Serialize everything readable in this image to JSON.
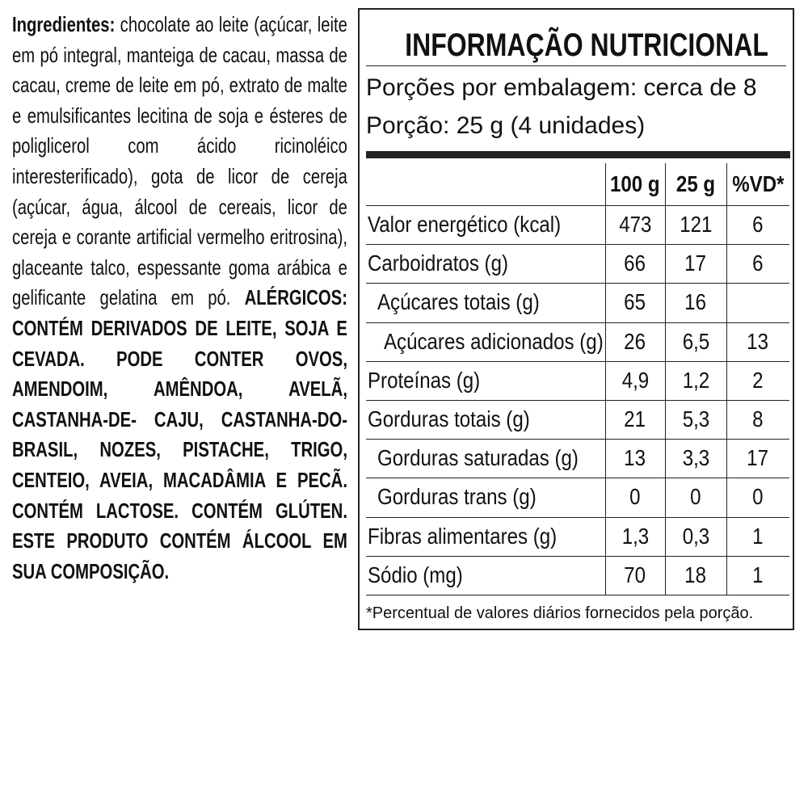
{
  "ingredients": {
    "label": "Ingredientes:",
    "text": "chocolate ao leite (açúcar, leite em pó integral, manteiga de cacau, massa de cacau, creme de leite em pó, extrato de malte e emulsificantes lecitina de soja e ésteres de poliglicerol com ácido ricinoléico interesterificado), gota de licor de cereja (açúcar, água, álcool de cereais, licor de cereja e corante artificial vermelho eritrosina), glaceante talco, espessante goma arábica e gelificante gelatina em pó.",
    "allergens": "ALÉRGICOS: CONTÉM DERIVADOS DE LEITE, SOJA E CEVADA. PODE CONTER OVOS, AMENDOIM, AMÊNDOA, AVELÃ, CASTANHA-DE- CAJU, CASTANHA-DO-BRASIL, NOZES, PISTACHE, TRIGO, CENTEIO, AVEIA, MACADÂMIA E PECÃ. CONTÉM LACTOSE. CONTÉM GLÚTEN. ESTE PRODUTO CONTÉM ÁLCOOL EM SUA COMPOSIÇÃO."
  },
  "nutrition": {
    "title": "INFORMAÇÃO NUTRICIONAL",
    "servings_per_package": "Porções por embalagem: cerca de 8",
    "serving_size": "Porção: 25 g (4 unidades)",
    "headers": [
      "100 g",
      "25 g",
      "%VD*"
    ],
    "rows": [
      [
        "Valor energético (kcal)",
        "473",
        "121",
        "6"
      ],
      [
        "Carboidratos (g)",
        "66",
        "17",
        "6"
      ],
      [
        "Açúcares totais (g)",
        "65",
        "16",
        null
      ],
      [
        "Açúcares adicionados (g)",
        "26",
        "6,5",
        "13"
      ],
      [
        "Proteínas (g)",
        "4,9",
        "1,2",
        "2"
      ],
      [
        "Gorduras totais (g)",
        "21",
        "5,3",
        "8"
      ],
      [
        "Gorduras saturadas (g)",
        "13",
        "3,3",
        "17"
      ],
      [
        "Gorduras trans (g)",
        "0",
        "0",
        "0"
      ],
      [
        "Fibras alimentares (g)",
        "1,3",
        "0,3",
        "1"
      ],
      [
        "Sódio (mg)",
        "70",
        "18",
        "1"
      ]
    ],
    "footnote": "*Percentual de valores diários fornecidos pela porção."
  }
}
